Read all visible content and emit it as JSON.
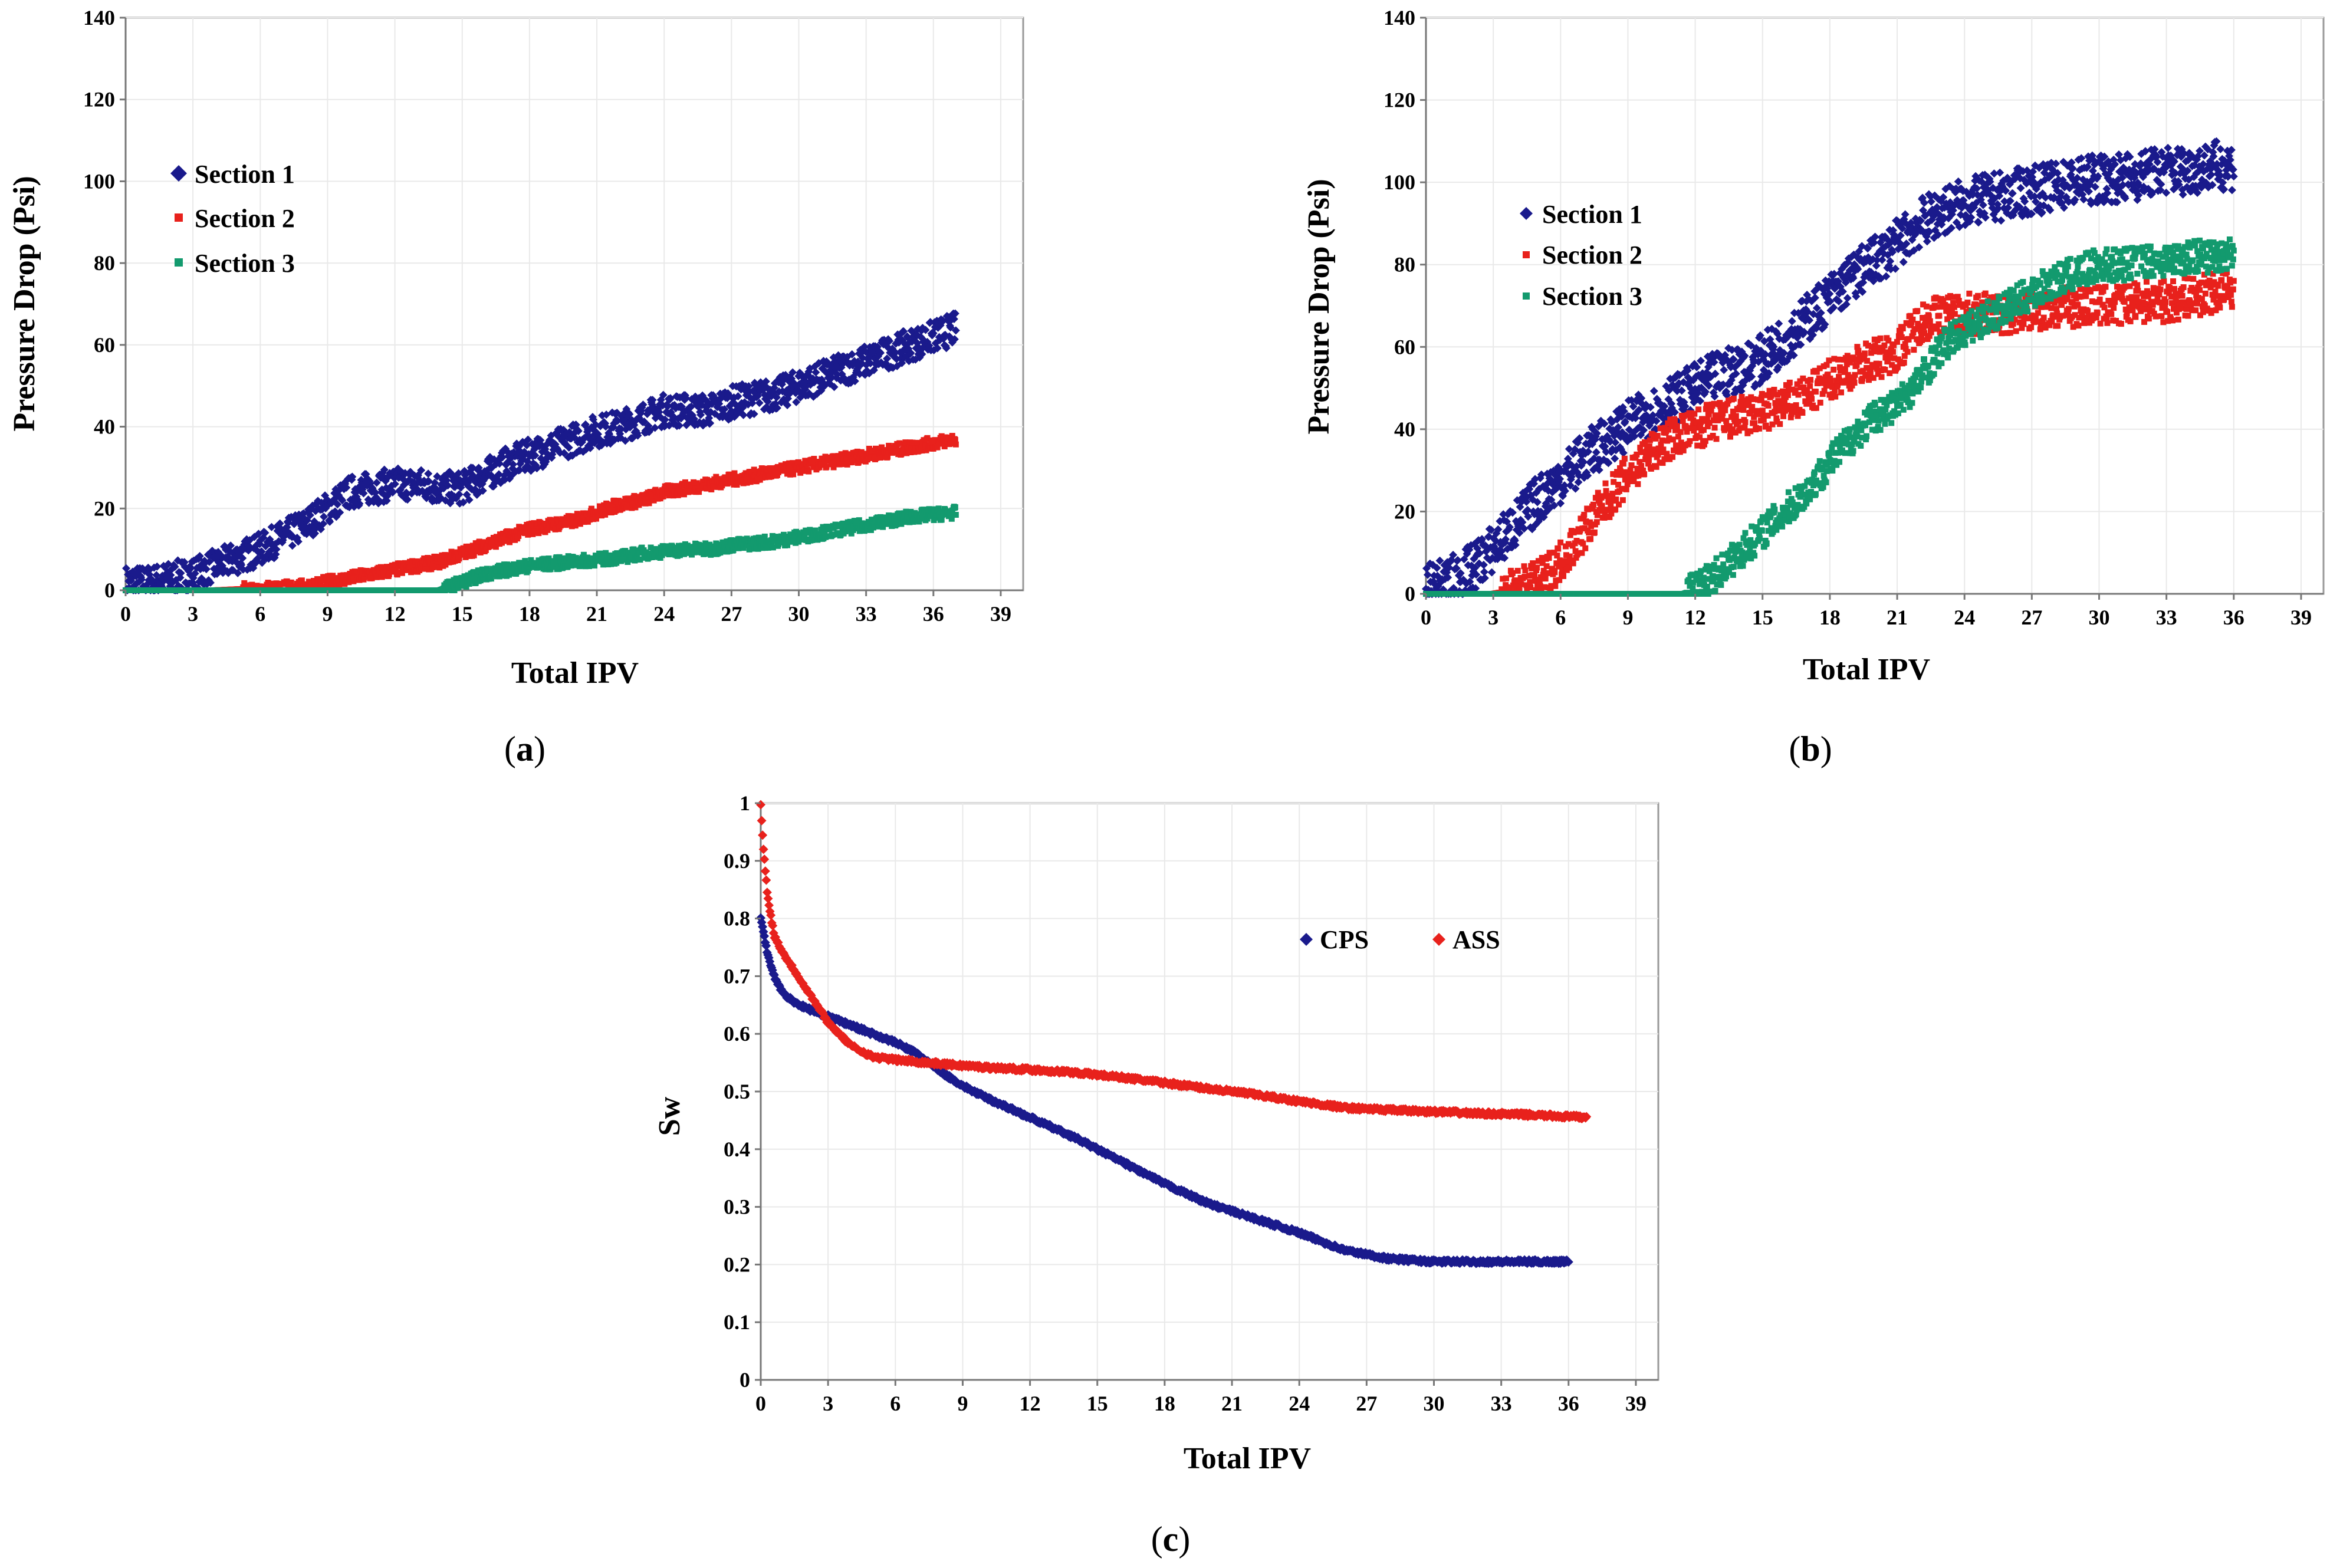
{
  "chart_data": [
    {
      "panel_label": "a",
      "type": "scatter",
      "xlabel": "Total IPV",
      "ylabel": "Pressure Drop (Psi)",
      "xlim": [
        0,
        40
      ],
      "ylim": [
        0,
        140
      ],
      "xticks": [
        0,
        3,
        6,
        9,
        12,
        15,
        18,
        21,
        24,
        27,
        30,
        33,
        36,
        39
      ],
      "yticks": [
        0,
        20,
        40,
        60,
        80,
        100,
        120,
        140
      ],
      "grid": true,
      "legend_position": "top-left",
      "series": [
        {
          "name": "Section 1",
          "color": "#1a1a8c",
          "marker": "diamond",
          "noise": 4,
          "x": [
            0,
            1,
            2,
            3,
            4,
            5,
            6,
            7,
            8,
            9,
            10,
            11,
            12,
            13,
            14,
            15,
            16,
            17,
            18,
            19,
            20,
            21,
            22,
            23,
            24,
            25,
            26,
            27,
            28,
            29,
            30,
            31,
            32,
            33,
            34,
            35,
            36,
            37
          ],
          "y": [
            2,
            2,
            3,
            4,
            6,
            8,
            10,
            13,
            16,
            20,
            24,
            25,
            26,
            26,
            25,
            25,
            28,
            31,
            33,
            35,
            37,
            39,
            40,
            42,
            44,
            44,
            44,
            46,
            47,
            48,
            50,
            52,
            54,
            56,
            58,
            60,
            62,
            64
          ]
        },
        {
          "name": "Section 2",
          "color": "#e8211c",
          "marker": "square",
          "noise": 1.5,
          "x": [
            0,
            2,
            4,
            6,
            8,
            9,
            10,
            11,
            12,
            13,
            14,
            15,
            16,
            17,
            18,
            19,
            20,
            21,
            22,
            23,
            24,
            25,
            26,
            27,
            28,
            29,
            30,
            31,
            32,
            33,
            34,
            35,
            36,
            37
          ],
          "y": [
            0,
            0,
            0,
            0.5,
            1,
            2,
            3,
            4,
            5,
            6,
            7,
            9,
            11,
            13,
            15,
            16,
            17,
            19,
            21,
            22,
            24,
            25,
            26,
            27,
            28,
            29,
            30,
            31,
            32,
            33,
            34,
            35,
            36,
            37
          ]
        },
        {
          "name": "Section 3",
          "color": "#139a6e",
          "marker": "square",
          "noise": 1.5,
          "x": [
            0,
            3,
            6,
            9,
            12,
            14,
            15,
            16,
            17,
            18,
            19,
            20,
            21,
            22,
            23,
            24,
            25,
            26,
            27,
            28,
            29,
            30,
            31,
            32,
            33,
            34,
            35,
            36,
            37
          ],
          "y": [
            0,
            0,
            0,
            0,
            0,
            0,
            2,
            4,
            5,
            6,
            6.5,
            7,
            7.5,
            8,
            9,
            9.5,
            10,
            10,
            11,
            11.5,
            12,
            13,
            14,
            15,
            16,
            17,
            18,
            18.5,
            19
          ]
        }
      ]
    },
    {
      "panel_label": "b",
      "type": "scatter",
      "xlabel": "Total IPV",
      "ylabel": "Pressure Drop (Psi)",
      "xlim": [
        0,
        40
      ],
      "ylim": [
        0,
        140
      ],
      "xticks": [
        0,
        3,
        6,
        9,
        12,
        15,
        18,
        21,
        24,
        27,
        30,
        33,
        36,
        39
      ],
      "yticks": [
        0,
        20,
        40,
        60,
        80,
        100,
        120,
        140
      ],
      "grid": true,
      "legend_position": "top-left",
      "series": [
        {
          "name": "Section 1",
          "color": "#1a1a8c",
          "marker": "diamond",
          "noise": 6,
          "x": [
            0,
            1,
            2,
            3,
            4,
            5,
            6,
            7,
            8,
            9,
            10,
            11,
            12,
            13,
            14,
            15,
            16,
            17,
            18,
            19,
            20,
            21,
            22,
            23,
            24,
            25,
            26,
            27,
            28,
            29,
            30,
            31,
            32,
            33,
            34,
            35,
            36
          ],
          "y": [
            1,
            3,
            6,
            11,
            17,
            23,
            28,
            33,
            37,
            41,
            44,
            47,
            50,
            53,
            55,
            57,
            62,
            67,
            72,
            77,
            81,
            85,
            90,
            93,
            95,
            96,
            97,
            98,
            99,
            100,
            101,
            101,
            102,
            103,
            103,
            104,
            104
          ]
        },
        {
          "name": "Section 2",
          "color": "#e8211c",
          "marker": "square",
          "noise": 5,
          "x": [
            0,
            3,
            4,
            5,
            6,
            7,
            8,
            9,
            10,
            11,
            12,
            13,
            14,
            15,
            16,
            17,
            18,
            19,
            20,
            21,
            22,
            23,
            24,
            25,
            26,
            27,
            28,
            29,
            30,
            31,
            32,
            33,
            34,
            35,
            36
          ],
          "y": [
            0,
            0,
            1,
            3,
            8,
            15,
            22,
            29,
            34,
            38,
            40,
            42,
            43,
            44,
            46,
            48,
            52,
            55,
            57,
            59,
            66,
            68,
            68,
            68,
            68,
            69,
            69,
            70,
            70,
            70,
            71,
            71,
            72,
            73,
            74
          ]
        },
        {
          "name": "Section 3",
          "color": "#139a6e",
          "marker": "square",
          "noise": 4,
          "x": [
            0,
            3,
            6,
            9,
            11.5,
            12,
            13,
            14,
            15,
            16,
            17,
            18,
            19,
            20,
            21,
            22,
            23,
            24,
            25,
            26,
            27,
            28,
            29,
            30,
            31,
            32,
            33,
            34,
            35,
            36
          ],
          "y": [
            0,
            0,
            0,
            0,
            0,
            1,
            5,
            10,
            15,
            20,
            25,
            32,
            38,
            43,
            46,
            52,
            60,
            64,
            67,
            70,
            73,
            76,
            78,
            80,
            80,
            81,
            81,
            82,
            82,
            83
          ]
        }
      ]
    },
    {
      "panel_label": "c",
      "type": "line",
      "xlabel": "Total IPV",
      "ylabel": "Sw",
      "xlim": [
        0,
        40
      ],
      "ylim": [
        0,
        1
      ],
      "xticks": [
        0,
        3,
        6,
        9,
        12,
        15,
        18,
        21,
        24,
        27,
        30,
        33,
        36,
        39
      ],
      "yticks": [
        0,
        0.1,
        0.2,
        0.3,
        0.4,
        0.5,
        0.6,
        0.7,
        0.8,
        0.9,
        1
      ],
      "grid": true,
      "legend_position": "top-right",
      "series": [
        {
          "name": "CPS",
          "color": "#1a1a8c",
          "marker": "diamond",
          "x": [
            0,
            0.3,
            0.6,
            1,
            1.5,
            2,
            3,
            4,
            5,
            6,
            7,
            8,
            9,
            10,
            12,
            14,
            16,
            18,
            20,
            22,
            24,
            26,
            28,
            30,
            32,
            34,
            36
          ],
          "y": [
            0.8,
            0.74,
            0.7,
            0.67,
            0.655,
            0.645,
            0.63,
            0.615,
            0.6,
            0.585,
            0.565,
            0.535,
            0.51,
            0.49,
            0.455,
            0.42,
            0.38,
            0.34,
            0.305,
            0.28,
            0.255,
            0.225,
            0.21,
            0.205,
            0.205,
            0.205,
            0.205
          ]
        },
        {
          "name": "ASS",
          "color": "#e8211c",
          "marker": "diamond",
          "x": [
            0,
            0.1,
            0.3,
            0.6,
            1,
            1.5,
            2,
            3,
            4,
            5,
            6,
            8,
            10,
            12,
            14,
            16,
            18,
            20,
            22,
            24,
            26,
            28,
            30,
            32,
            34,
            36.8
          ],
          "y": [
            1,
            0.93,
            0.84,
            0.77,
            0.74,
            0.71,
            0.68,
            0.62,
            0.58,
            0.56,
            0.555,
            0.548,
            0.542,
            0.538,
            0.533,
            0.525,
            0.515,
            0.505,
            0.495,
            0.483,
            0.472,
            0.468,
            0.465,
            0.462,
            0.46,
            0.455
          ]
        }
      ]
    }
  ]
}
